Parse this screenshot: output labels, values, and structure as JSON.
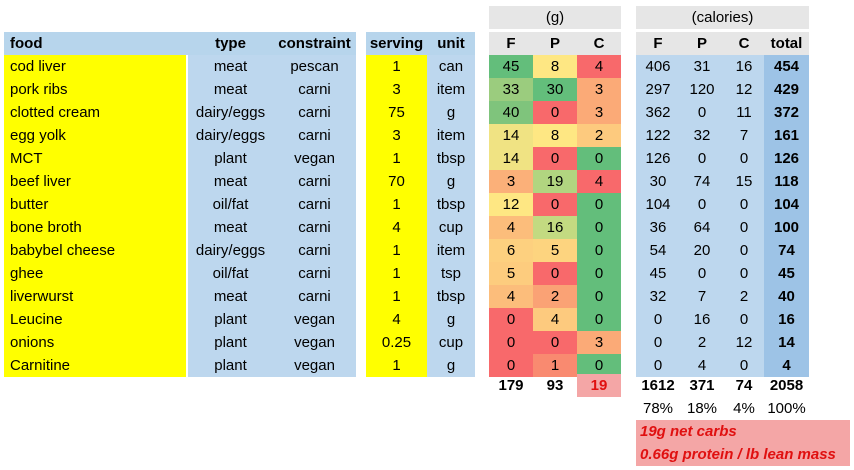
{
  "header": {
    "grams_group": "(g)",
    "calories_group": "(calories)",
    "columns": {
      "food": "food",
      "type": "type",
      "constraint": "constraint",
      "serving": "serving",
      "unit": "unit",
      "fat_g": "F",
      "protein_g": "P",
      "carb_g": "C",
      "fat_cal": "F",
      "protein_cal": "P",
      "carb_cal": "C",
      "total": "total"
    }
  },
  "colors": {
    "food_bg": "#ffff00",
    "info_bg": "#bdd7ee",
    "total_bg": "#9dc3e6",
    "green": "#63be7b",
    "light_green": "#b1d580",
    "yellow_green": "#d7e082",
    "yellow": "#fee783",
    "orange": "#fbaa77",
    "red": "#f8696b"
  },
  "rows": [
    {
      "food": "cod liver",
      "type": "meat",
      "constraint": "pescan",
      "serving": "1",
      "unit": "can",
      "f": "45",
      "p": "8",
      "c": "4",
      "fc": "406",
      "pc": "31",
      "cc": "16",
      "total": "454",
      "f_color": "#63be7b",
      "p_color": "#fee783",
      "c_color": "#f8696b"
    },
    {
      "food": "pork ribs",
      "type": "meat",
      "constraint": "carni",
      "serving": "3",
      "unit": "item",
      "f": "33",
      "p": "30",
      "c": "3",
      "fc": "297",
      "pc": "120",
      "cc": "12",
      "total": "429",
      "f_color": "#9bcc7e",
      "p_color": "#63be7b",
      "c_color": "#fbaa77"
    },
    {
      "food": "clotted cream",
      "type": "dairy/eggs",
      "constraint": "carni",
      "serving": "75",
      "unit": "g",
      "f": "40",
      "p": "0",
      "c": "3",
      "fc": "362",
      "pc": "0",
      "cc": "11",
      "total": "372",
      "f_color": "#7fc47c",
      "p_color": "#f8696b",
      "c_color": "#fbaa77"
    },
    {
      "food": "egg yolk",
      "type": "dairy/eggs",
      "constraint": "carni",
      "serving": "3",
      "unit": "item",
      "f": "14",
      "p": "8",
      "c": "2",
      "fc": "122",
      "pc": "32",
      "cc": "7",
      "total": "161",
      "f_color": "#f0e383",
      "p_color": "#fee783",
      "c_color": "#fdca7e"
    },
    {
      "food": "MCT",
      "type": "plant",
      "constraint": "vegan",
      "serving": "1",
      "unit": "tbsp",
      "f": "14",
      "p": "0",
      "c": "0",
      "fc": "126",
      "pc": "0",
      "cc": "0",
      "total": "126",
      "f_color": "#f0e383",
      "p_color": "#f8696b",
      "c_color": "#63be7b"
    },
    {
      "food": "beef liver",
      "type": "meat",
      "constraint": "carni",
      "serving": "70",
      "unit": "g",
      "f": "3",
      "p": "19",
      "c": "4",
      "fc": "30",
      "pc": "74",
      "cc": "15",
      "total": "118",
      "f_color": "#fbb079",
      "p_color": "#b1d580",
      "c_color": "#f8696b"
    },
    {
      "food": "butter",
      "type": "oil/fat",
      "constraint": "carni",
      "serving": "1",
      "unit": "tbsp",
      "f": "12",
      "p": "0",
      "c": "0",
      "fc": "104",
      "pc": "0",
      "cc": "0",
      "total": "104",
      "f_color": "#fee783",
      "p_color": "#f8696b",
      "c_color": "#63be7b"
    },
    {
      "food": "bone broth",
      "type": "meat",
      "constraint": "carni",
      "serving": "4",
      "unit": "cup",
      "f": "4",
      "p": "16",
      "c": "0",
      "fc": "36",
      "pc": "64",
      "cc": "0",
      "total": "100",
      "f_color": "#fcbd7b",
      "p_color": "#c3da81",
      "c_color": "#63be7b"
    },
    {
      "food": "babybel cheese",
      "type": "dairy/eggs",
      "constraint": "carni",
      "serving": "1",
      "unit": "item",
      "f": "6",
      "p": "5",
      "c": "0",
      "fc": "54",
      "pc": "20",
      "cc": "0",
      "total": "74",
      "f_color": "#fdd07f",
      "p_color": "#fdd47f",
      "c_color": "#63be7b"
    },
    {
      "food": "ghee",
      "type": "oil/fat",
      "constraint": "carni",
      "serving": "1",
      "unit": "tsp",
      "f": "5",
      "p": "0",
      "c": "0",
      "fc": "45",
      "pc": "0",
      "cc": "0",
      "total": "45",
      "f_color": "#fdcc7e",
      "p_color": "#f8696b",
      "c_color": "#63be7b"
    },
    {
      "food": "liverwurst",
      "type": "meat",
      "constraint": "carni",
      "serving": "1",
      "unit": "tbsp",
      "f": "4",
      "p": "2",
      "c": "0",
      "fc": "32",
      "pc": "7",
      "cc": "2",
      "total": "40",
      "f_color": "#fcbd7b",
      "p_color": "#faa275",
      "c_color": "#63be7b"
    },
    {
      "food": "Leucine",
      "type": "plant",
      "constraint": "vegan",
      "serving": "4",
      "unit": "g",
      "f": "0",
      "p": "4",
      "c": "0",
      "fc": "0",
      "pc": "16",
      "cc": "0",
      "total": "16",
      "f_color": "#f8696b",
      "p_color": "#fdca7e",
      "c_color": "#63be7b"
    },
    {
      "food": "onions",
      "type": "plant",
      "constraint": "vegan",
      "serving": "0.25",
      "unit": "cup",
      "f": "0",
      "p": "0",
      "c": "3",
      "fc": "0",
      "pc": "2",
      "cc": "12",
      "total": "14",
      "f_color": "#f8696b",
      "p_color": "#f8696b",
      "c_color": "#fbaa77"
    },
    {
      "food": "Carnitine",
      "type": "plant",
      "constraint": "vegan",
      "serving": "1",
      "unit": "g",
      "f": "0",
      "p": "1",
      "c": "0",
      "fc": "0",
      "pc": "4",
      "cc": "0",
      "total": "4",
      "f_color": "#f8696b",
      "p_color": "#f98a70",
      "c_color": "#63be7b"
    }
  ],
  "totals": {
    "fat_g": "179",
    "protein_g": "93",
    "carb_g": "19",
    "fat_cal": "1612",
    "protein_cal": "371",
    "carb_cal": "74",
    "total_cal": "2058"
  },
  "percents": {
    "fat": "78%",
    "protein": "18%",
    "carb": "4%",
    "total": "100%"
  },
  "notes": [
    "19g net carbs",
    "0.66g protein / lb lean mass"
  ]
}
